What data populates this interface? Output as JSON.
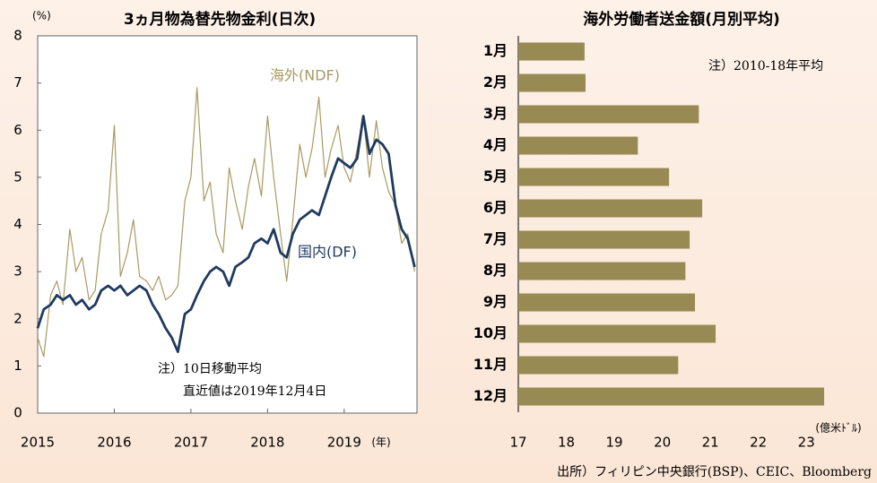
{
  "chart_data": [
    {
      "type": "line",
      "title": "3ヵ月物為替先物金利(日次)",
      "y_unit_label": "(%)",
      "x_unit_label": "(年)",
      "x": [
        2015,
        2015.08,
        2015.17,
        2015.25,
        2015.33,
        2015.42,
        2015.5,
        2015.58,
        2015.67,
        2015.75,
        2015.83,
        2015.92,
        2016,
        2016.08,
        2016.17,
        2016.25,
        2016.33,
        2016.42,
        2016.5,
        2016.58,
        2016.67,
        2016.75,
        2016.83,
        2016.92,
        2017,
        2017.08,
        2017.17,
        2017.25,
        2017.33,
        2017.42,
        2017.5,
        2017.58,
        2017.67,
        2017.75,
        2017.83,
        2017.92,
        2018,
        2018.08,
        2018.17,
        2018.25,
        2018.33,
        2018.42,
        2018.5,
        2018.58,
        2018.67,
        2018.75,
        2018.83,
        2018.92,
        2019,
        2019.08,
        2019.17,
        2019.25,
        2019.33,
        2019.42,
        2019.5,
        2019.58,
        2019.67,
        2019.75,
        2019.83,
        2019.92
      ],
      "xlim": [
        2015,
        2019.95
      ],
      "xticks": [
        2015,
        2016,
        2017,
        2018,
        2019
      ],
      "ylim": [
        0,
        8
      ],
      "yticks": [
        0,
        1,
        2,
        3,
        4,
        5,
        6,
        7,
        8
      ],
      "series": [
        {
          "name": "海外(NDF)",
          "color": "#a89a62",
          "values": [
            1.6,
            1.2,
            2.5,
            2.8,
            2.3,
            3.9,
            3.0,
            3.3,
            2.4,
            2.6,
            3.8,
            4.3,
            6.1,
            2.9,
            3.4,
            4.1,
            2.9,
            2.8,
            2.6,
            2.9,
            2.4,
            2.5,
            2.7,
            4.5,
            5.0,
            6.9,
            4.5,
            4.9,
            3.8,
            3.4,
            5.2,
            4.5,
            3.9,
            4.8,
            5.4,
            4.6,
            6.3,
            5.0,
            3.8,
            2.8,
            4.1,
            5.7,
            5.0,
            5.6,
            6.7,
            5.0,
            5.6,
            6.1,
            5.2,
            4.9,
            5.6,
            6.3,
            5.0,
            6.2,
            5.2,
            4.7,
            4.4,
            3.6,
            3.8,
            3.0
          ]
        },
        {
          "name": "国内(DF)",
          "color": "#1f3a5f",
          "values": [
            1.8,
            2.2,
            2.3,
            2.5,
            2.4,
            2.5,
            2.3,
            2.4,
            2.2,
            2.3,
            2.6,
            2.7,
            2.6,
            2.7,
            2.5,
            2.6,
            2.7,
            2.6,
            2.3,
            2.1,
            1.8,
            1.6,
            1.3,
            2.1,
            2.2,
            2.5,
            2.8,
            3.0,
            3.1,
            3.0,
            2.7,
            3.1,
            3.2,
            3.3,
            3.6,
            3.7,
            3.6,
            3.9,
            3.4,
            3.3,
            3.8,
            4.1,
            4.2,
            4.3,
            4.2,
            4.6,
            5.0,
            5.4,
            5.3,
            5.2,
            5.4,
            6.3,
            5.5,
            5.8,
            5.7,
            5.5,
            4.4,
            3.9,
            3.7,
            3.1
          ]
        }
      ],
      "annotations": [
        "注）10日移動平均",
        "直近値は2019年12月4日"
      ]
    },
    {
      "type": "bar",
      "orientation": "horizontal",
      "title": "海外労働者送金額(月別平均)",
      "x_unit_label": "(億米ﾄﾞﾙ)",
      "categories": [
        "1月",
        "2月",
        "3月",
        "4月",
        "5月",
        "6月",
        "7月",
        "8月",
        "9月",
        "10月",
        "11月",
        "12月"
      ],
      "values": [
        18.38,
        18.4,
        20.76,
        19.49,
        20.14,
        20.83,
        20.57,
        20.48,
        20.68,
        21.11,
        20.33,
        23.37
      ],
      "color": "#978a53",
      "xlim": [
        17,
        23.5
      ],
      "xticks": [
        17,
        18,
        19,
        20,
        21,
        22,
        23
      ],
      "annotations": [
        "注）2010-18年平均"
      ]
    }
  ],
  "source": "出所）フィリピン中央銀行(BSP)、CEIC、Bloomberg"
}
